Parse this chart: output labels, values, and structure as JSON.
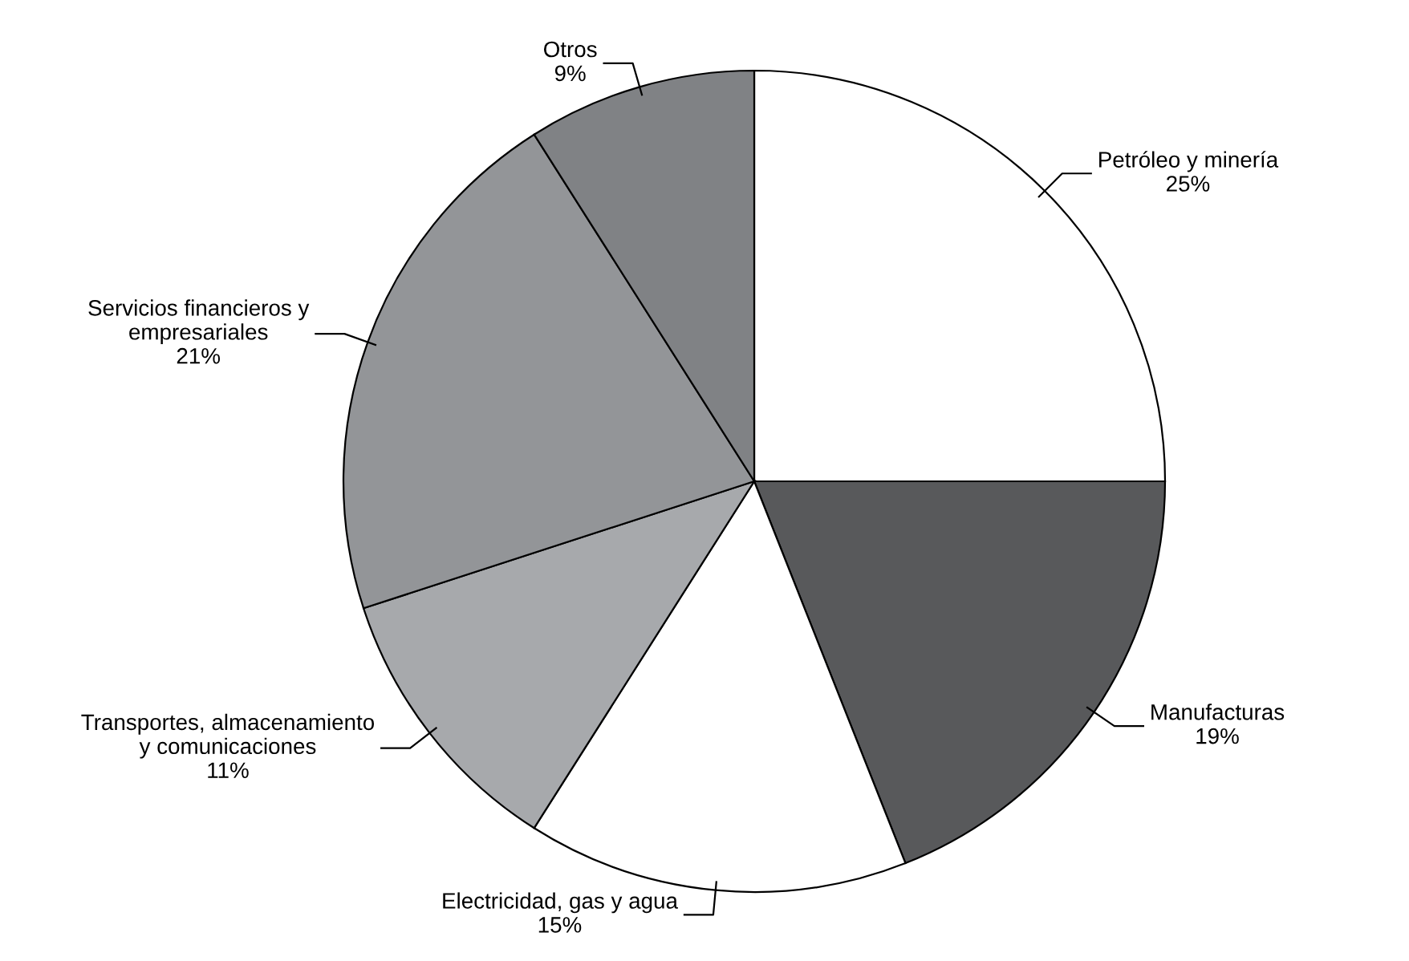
{
  "chart_data": {
    "type": "pie",
    "categories": [
      "Petróleo y minería",
      "Manufacturas",
      "Electricidad, gas y agua",
      "Transportes, almacenamiento\ny comunicaciones",
      "Servicios financieros y\nempresariales",
      "Otros"
    ],
    "values": [
      25,
      19,
      15,
      11,
      21,
      9
    ],
    "value_labels": [
      "25%",
      "19%",
      "15%",
      "11%",
      "21%",
      "9%"
    ],
    "colors": [
      "#ffffff",
      "#58595b",
      "#ffffff",
      "#a7a9ac",
      "#939598",
      "#808285"
    ],
    "legend": false
  }
}
